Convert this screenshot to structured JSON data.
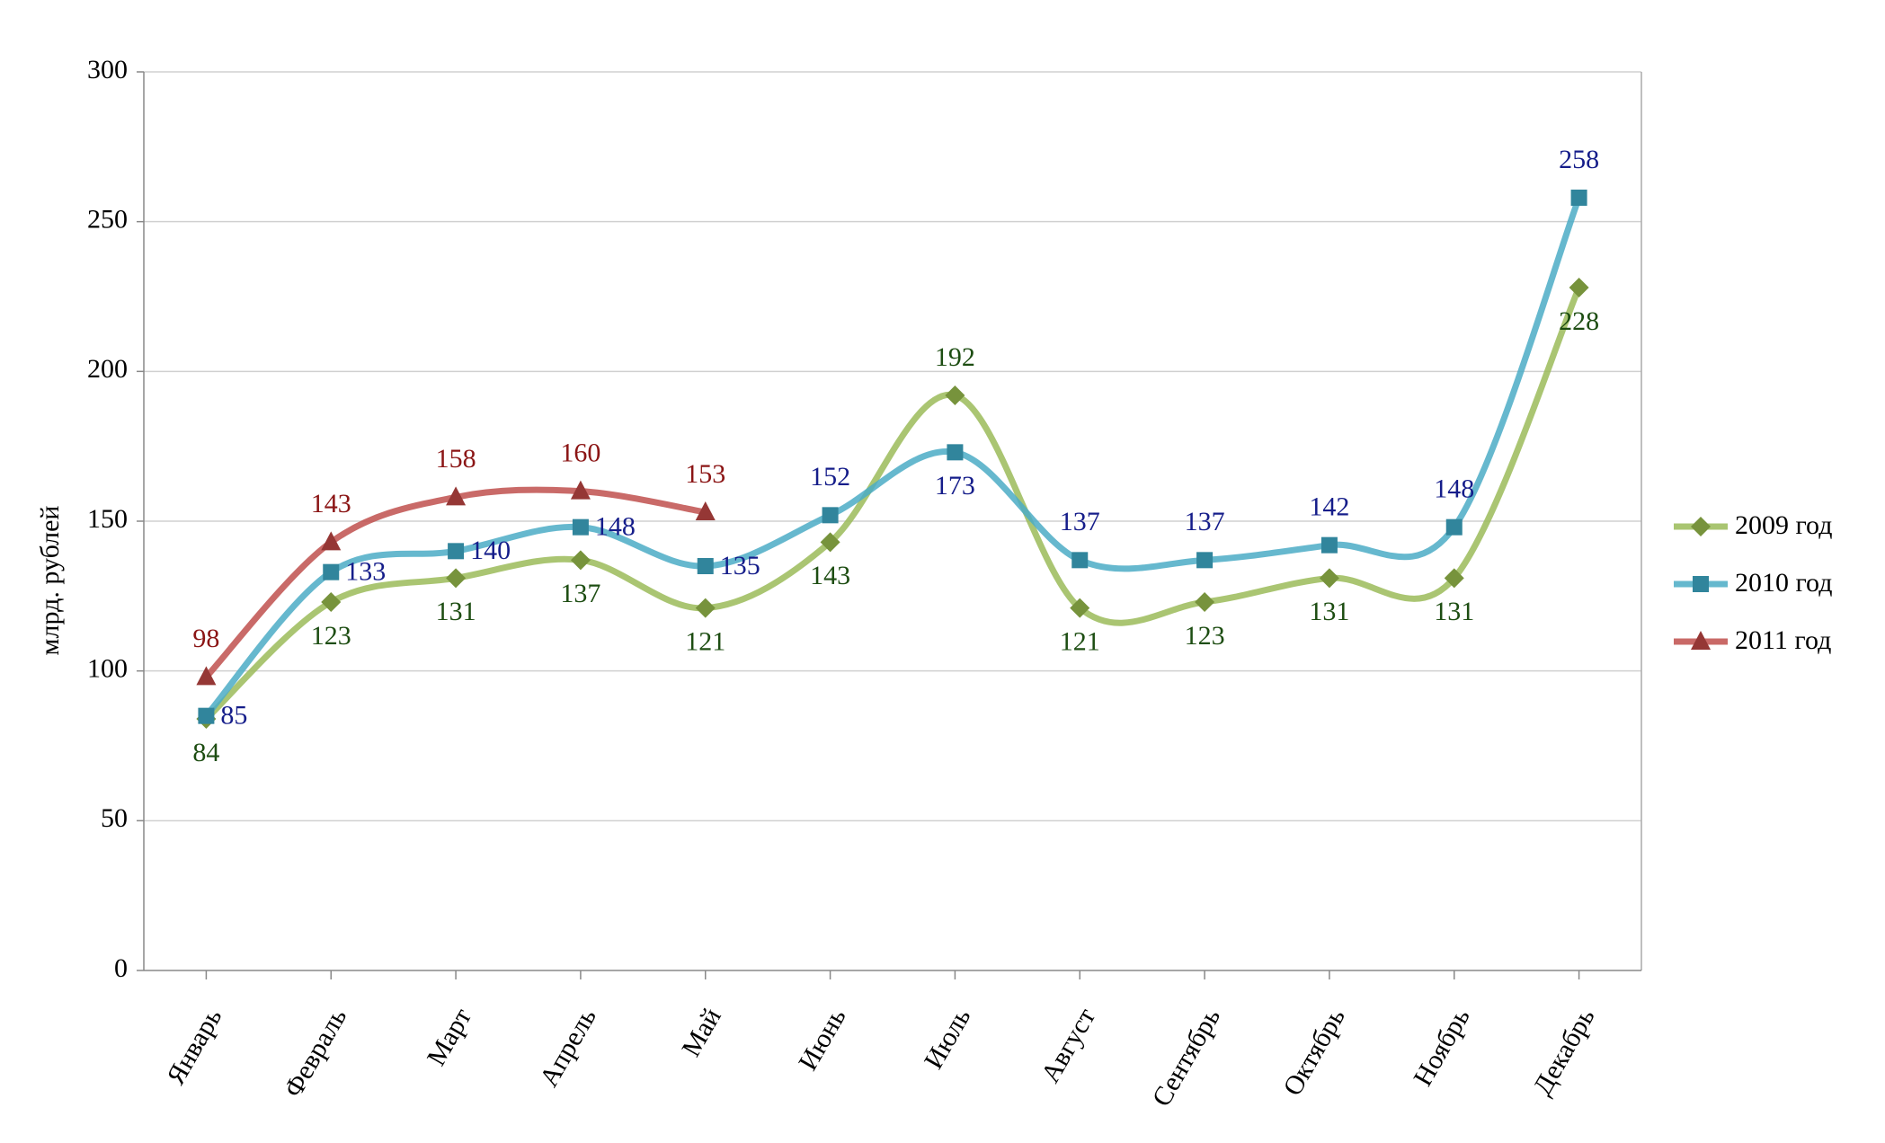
{
  "chart_data": {
    "type": "line",
    "y_label": "млрд. рублей",
    "categories": [
      "Январь",
      "Февраль",
      "Март",
      "Апрель",
      "Май",
      "Июнь",
      "Июль",
      "Август",
      "Сентябрь",
      "Октябрь",
      "Ноябрь",
      "Декабрь"
    ],
    "series": [
      {
        "name": "2009 год",
        "color": "#9bbb59",
        "marker_color": "#77933c",
        "label_color": "#1d4d12",
        "marker": "diamond",
        "values": [
          84,
          123,
          131,
          137,
          121,
          143,
          192,
          121,
          123,
          131,
          131,
          228
        ]
      },
      {
        "name": "2010 год",
        "color": "#4bacc6",
        "marker_color": "#31859c",
        "label_color": "#151d8a",
        "marker": "square",
        "values": [
          85,
          133,
          140,
          148,
          135,
          152,
          173,
          137,
          137,
          142,
          148,
          258
        ]
      },
      {
        "name": "2011 год",
        "color": "#c0504d",
        "marker_color": "#953735",
        "label_color": "#8b1515",
        "marker": "triangle",
        "values": [
          98,
          143,
          158,
          160,
          153,
          null,
          null,
          null,
          null,
          null,
          null,
          null
        ]
      }
    ],
    "ylim": [
      0,
      300
    ],
    "yticks": [
      0,
      50,
      100,
      150,
      200,
      250,
      300
    ],
    "grid": true,
    "smooth": true,
    "legend": "right"
  }
}
